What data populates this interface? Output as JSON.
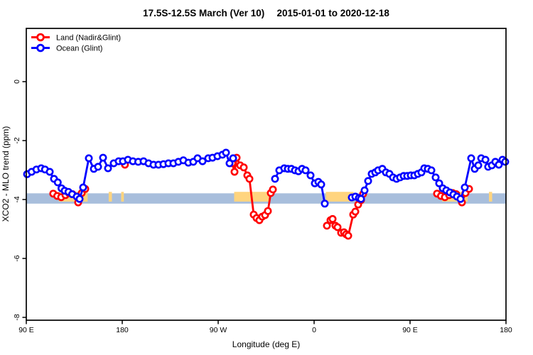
{
  "chart_data": {
    "type": "line",
    "title": "17.5S-12.5S March (Ver 10)  2015-01-01 to 2020-12-18",
    "xlabel": "Longitude (deg E)",
    "ylabel": "XCO2 - MLO trend (ppm)",
    "xlim": [
      90,
      540
    ],
    "ylim": [
      -8.1,
      1.8
    ],
    "grid": false,
    "x_ticks": [
      {
        "pos": 90,
        "label": "90 E"
      },
      {
        "pos": 180,
        "label": "180"
      },
      {
        "pos": 270,
        "label": "90 W"
      },
      {
        "pos": 360,
        "label": "0"
      },
      {
        "pos": 450,
        "label": "90 E"
      },
      {
        "pos": 540,
        "label": "180"
      }
    ],
    "y_ticks": [
      {
        "pos": 0,
        "label": "0"
      },
      {
        "pos": -2,
        "label": "-2"
      },
      {
        "pos": -4,
        "label": "-4"
      },
      {
        "pos": -6,
        "label": "-6"
      },
      {
        "pos": -8,
        "label": "-8"
      }
    ],
    "legend": {
      "position": "top-left",
      "items": [
        {
          "name": "Land (Nadir&Glint)",
          "color": "#ff0000"
        },
        {
          "name": "Ocean (Glint)",
          "color": "#0000ff"
        }
      ]
    },
    "bands": [
      {
        "name": "reference-band",
        "color": "#a8bedc",
        "segments": [
          [
            90,
            540
          ]
        ],
        "y1": -3.79,
        "y2": -4.14
      },
      {
        "name": "flagged-band",
        "color": "#ffd47e",
        "segments": [
          [
            120.5,
            147.5
          ],
          [
            167.3,
            170.3
          ],
          [
            179,
            181.5
          ],
          [
            285,
            317.5
          ],
          [
            371,
            397
          ],
          [
            480,
            504
          ],
          [
            524,
            527
          ]
        ],
        "y1": -3.74,
        "y2": -4.07
      }
    ],
    "series": [
      {
        "name": "Land (Nadir&Glint)",
        "color": "#ff0000",
        "segments": [
          {
            "x": [
              115.3,
              119,
              122.7,
              126.7,
              130,
              133.3,
              138.7,
              142,
              145.3
            ],
            "y": [
              -3.8,
              -3.88,
              -3.92,
              -3.85,
              -3.78,
              -3.82,
              -4.1,
              -3.78,
              -3.64
            ]
          },
          {
            "x": [
              182.5
            ],
            "y": [
              -2.82
            ]
          },
          {
            "x": [
              283.3,
              285.3,
              287.3,
              290.7,
              294,
              297.3,
              299.3,
              303.3,
              306,
              308.7,
              311.3,
              314,
              316.7,
              319.3,
              321.3
            ],
            "y": [
              -2.77,
              -3.06,
              -2.58,
              -2.84,
              -2.91,
              -3.18,
              -3.3,
              -4.51,
              -4.63,
              -4.7,
              -4.58,
              -4.53,
              -4.39,
              -3.78,
              -3.66
            ]
          },
          {
            "x": [
              372,
              375.3,
              377.3,
              380,
              382,
              385.3,
              388,
              390,
              392,
              396.7,
              398.7,
              401.3,
              404,
              406
            ],
            "y": [
              -4.89,
              -4.7,
              -4.66,
              -4.89,
              -4.94,
              -5.13,
              -5.11,
              -5.18,
              -5.23,
              -4.51,
              -4.41,
              -4.17,
              -4.02,
              -3.81
            ]
          },
          {
            "x": [
              475.3,
              479,
              482.7,
              486.7,
              490,
              493.3,
              498.7,
              502,
              505.3
            ],
            "y": [
              -3.8,
              -3.88,
              -3.92,
              -3.85,
              -3.78,
              -3.82,
              -4.1,
              -3.78,
              -3.64
            ]
          }
        ]
      },
      {
        "name": "Ocean (Glint)",
        "color": "#0000ff",
        "segments": [
          {
            "x": [
              90.7,
              95,
              99.5,
              104,
              107.5,
              112,
              116,
              119.5,
              123,
              126,
              129.5,
              133,
              137.3,
              140,
              143.3,
              148.7,
              153.3,
              157.3,
              162,
              166.7,
              172,
              176.7,
              180.7,
              185.3,
              190,
              195,
              200,
              204.7,
              209.3,
              214,
              218.7,
              223.3,
              228,
              232.7,
              237.3,
              242,
              246.7,
              250.7,
              255.3,
              260.7,
              264.7,
              269.3,
              274,
              277.3,
              280.7,
              284
            ],
            "y": [
              -3.14,
              -3.06,
              -2.98,
              -2.94,
              -2.98,
              -3.06,
              -3.3,
              -3.42,
              -3.62,
              -3.7,
              -3.74,
              -3.82,
              -3.9,
              -3.98,
              -3.59,
              -2.6,
              -2.96,
              -2.89,
              -2.58,
              -2.94,
              -2.77,
              -2.7,
              -2.7,
              -2.65,
              -2.7,
              -2.72,
              -2.7,
              -2.77,
              -2.82,
              -2.82,
              -2.8,
              -2.77,
              -2.77,
              -2.72,
              -2.67,
              -2.75,
              -2.72,
              -2.6,
              -2.7,
              -2.6,
              -2.58,
              -2.53,
              -2.48,
              -2.41,
              -2.77,
              -2.6
            ]
          },
          {
            "x": [
              323.3,
              327.3,
              332,
              335.3,
              338.7,
              342,
              345.3,
              348.7,
              352,
              356.7,
              360.7,
              364,
              366.7,
              370
            ],
            "y": [
              -3.3,
              -3.01,
              -2.94,
              -2.96,
              -2.96,
              -3.01,
              -3.04,
              -2.96,
              -3.01,
              -3.18,
              -3.45,
              -3.4,
              -3.49,
              -4.14
            ]
          },
          {
            "x": [
              395.3,
              398.7,
              402,
              404,
              407.3,
              410.7,
              414,
              417.3,
              420,
              424,
              427.3,
              430.7,
              434,
              437.3,
              440.7,
              444,
              447.3,
              450.7,
              454,
              457.3,
              460.7,
              463.3,
              466.7,
              470,
              474,
              477.3,
              480.7,
              484,
              487.3,
              490.7,
              494,
              497.3,
              501.3,
              507.3,
              510.7,
              514,
              516.7,
              520.7,
              523.3,
              526.7,
              530,
              533.3,
              536.7,
              539.3
            ],
            "y": [
              -3.93,
              -3.9,
              -3.95,
              -3.98,
              -3.69,
              -3.37,
              -3.13,
              -3.08,
              -3.01,
              -2.96,
              -3.08,
              -3.13,
              -3.25,
              -3.3,
              -3.25,
              -3.2,
              -3.2,
              -3.18,
              -3.18,
              -3.13,
              -3.08,
              -2.94,
              -2.96,
              -3.01,
              -3.25,
              -3.45,
              -3.62,
              -3.69,
              -3.76,
              -3.83,
              -3.9,
              -3.98,
              -3.59,
              -2.6,
              -2.96,
              -2.84,
              -2.6,
              -2.65,
              -2.89,
              -2.84,
              -2.72,
              -2.82,
              -2.65,
              -2.72
            ]
          }
        ]
      }
    ]
  }
}
